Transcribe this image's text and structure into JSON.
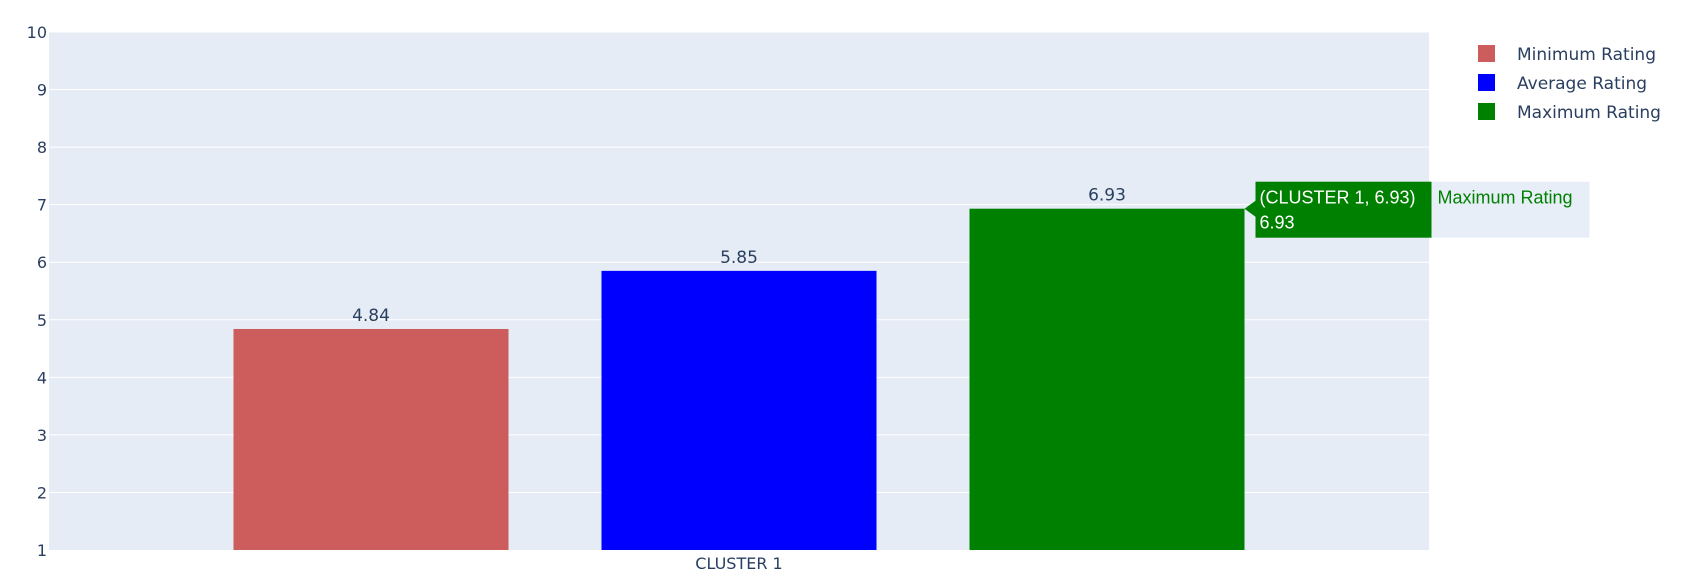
{
  "chart_data": {
    "type": "bar",
    "categories": [
      "CLUSTER 1"
    ],
    "series": [
      {
        "name": "Minimum Rating",
        "values": [
          4.84
        ],
        "color": "#cd5c5c",
        "labels": [
          "4.84"
        ]
      },
      {
        "name": "Average Rating",
        "values": [
          5.85
        ],
        "color": "#0000ff",
        "labels": [
          "5.85"
        ]
      },
      {
        "name": "Maximum Rating",
        "values": [
          6.93
        ],
        "color": "#008000",
        "labels": [
          "6.93"
        ]
      }
    ],
    "ylim": [
      1,
      10
    ],
    "yticks": [
      "1",
      "2",
      "3",
      "4",
      "5",
      "6",
      "7",
      "8",
      "9",
      "10"
    ],
    "grid": true,
    "legend_position": "top-right",
    "plot_background": "#e5ecf6",
    "hover": {
      "series": "Maximum Rating",
      "point_text": "(CLUSTER 1, 6.93)",
      "value_text": "6.93",
      "series_text": "Maximum Rating"
    }
  }
}
